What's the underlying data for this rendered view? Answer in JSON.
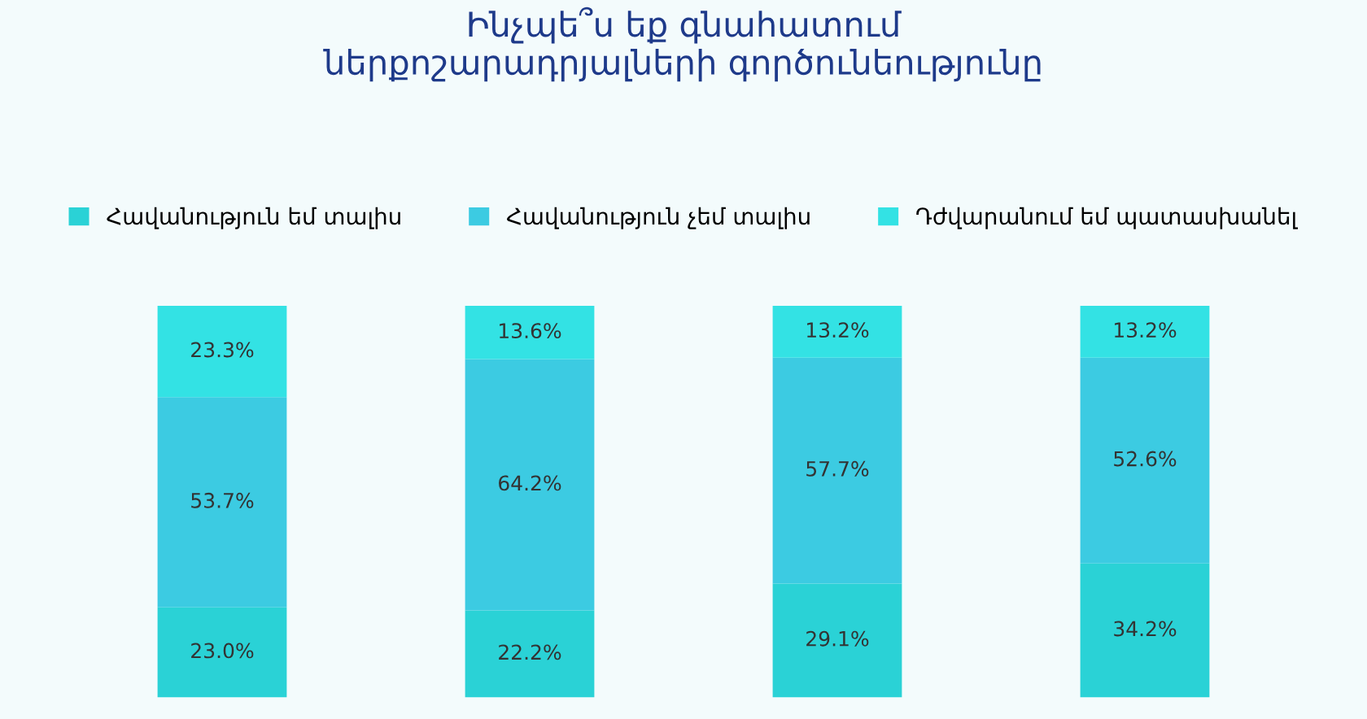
{
  "chart_data": {
    "type": "bar",
    "title": "Ինչպե՞ս եք գնահատում\nներքոշարադրյալների գործունեությունը",
    "categories": [
      null,
      null,
      null,
      null
    ],
    "stacked": true,
    "legend": "top",
    "grid": false,
    "series": [
      {
        "name": "Հավանություն եմ տալիս",
        "color": "#2ad2d6",
        "values": [
          23.0,
          22.2,
          29.1,
          34.2
        ],
        "value_labels": [
          "23.0%",
          "22.2%",
          "29.1%",
          "34.2%"
        ]
      },
      {
        "name": "Հավանություն չեմ տալիս",
        "color": "#3ccbe2",
        "values": [
          53.7,
          64.2,
          57.7,
          52.6
        ],
        "value_labels": [
          "53.7%",
          "64.2%",
          "57.7%",
          "52.6%"
        ]
      },
      {
        "name": "Դժվարանում եմ պատասխանել",
        "color": "#33e2e4",
        "values": [
          23.3,
          13.6,
          13.2,
          13.2
        ],
        "value_labels": [
          "23.3%",
          "13.6%",
          "13.2%",
          "13.2%"
        ]
      }
    ]
  }
}
